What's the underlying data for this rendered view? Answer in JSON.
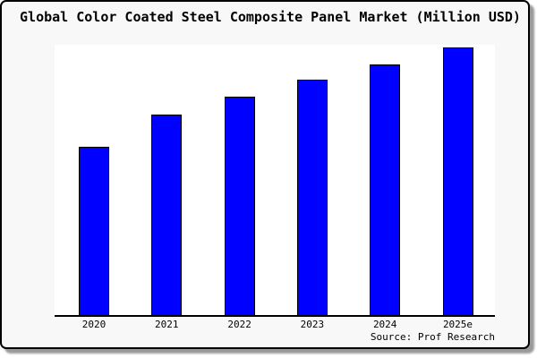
{
  "chart_data": {
    "type": "bar",
    "title": "Global Color Coated Steel Composite Panel Market (Million USD)",
    "categories": [
      "2020",
      "2021",
      "2022",
      "2023",
      "2024",
      "2025e"
    ],
    "values": [
      62.3,
      74.2,
      80.8,
      87.1,
      92.7,
      99.0
    ],
    "value_scale": "relative bar height as % of plot area; chart shows no y-axis, gridlines or data labels",
    "xlabel": "",
    "ylabel": "",
    "ylim": [
      0,
      100
    ],
    "grid": false,
    "legend": null,
    "y_axis_visible": false,
    "x_axis_visible": true,
    "source_note": "Source: Prof Research"
  },
  "colors": {
    "bar_fill": "#0000ff",
    "bar_edge": "#000000",
    "plot_background": "#ffffff",
    "card_background": "#f8f8f8",
    "card_border": "#000000",
    "card_shadow": "#9a9a9a",
    "text": "#000000"
  }
}
